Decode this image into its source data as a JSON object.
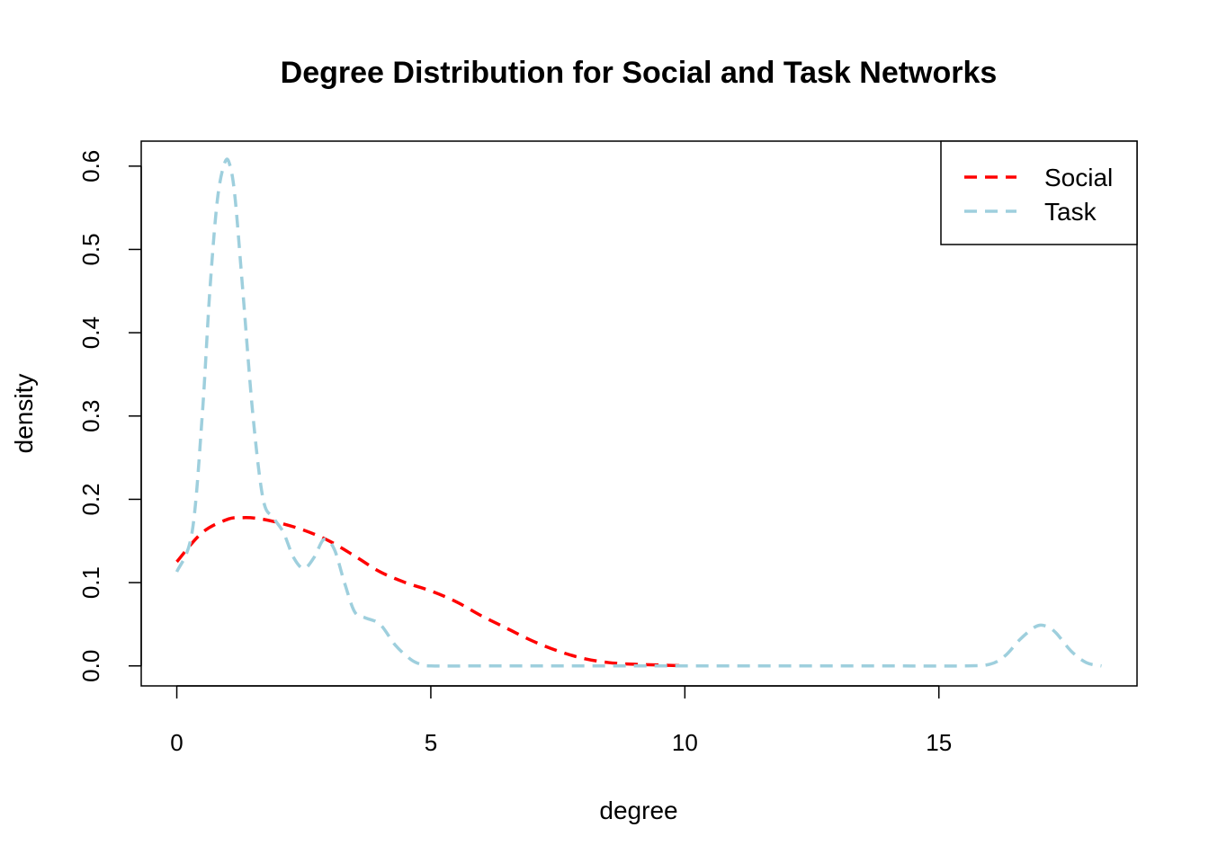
{
  "chart_data": {
    "type": "line",
    "title": "Degree Distribution for Social and Task Networks",
    "xlabel": "degree",
    "ylabel": "density",
    "xlim": [
      -0.7,
      18.9
    ],
    "ylim": [
      -0.024,
      0.63
    ],
    "xticks": [
      0,
      5,
      10,
      15
    ],
    "xtick_labels": [
      "0",
      "5",
      "10",
      "15"
    ],
    "yticks": [
      0.0,
      0.1,
      0.2,
      0.3,
      0.4,
      0.5,
      0.6
    ],
    "ytick_labels": [
      "0.0",
      "0.1",
      "0.2",
      "0.3",
      "0.4",
      "0.5",
      "0.6"
    ],
    "grid": false,
    "legend": {
      "placement": "top-right"
    },
    "series": [
      {
        "name": "Social",
        "color": "#ff0000",
        "dash": "dashed",
        "x": [
          0,
          0.5,
          1.0,
          1.3,
          1.6,
          2.0,
          2.5,
          3.0,
          3.5,
          4.0,
          4.5,
          5.0,
          5.5,
          6.0,
          6.5,
          7.0,
          7.5,
          8.0,
          8.5,
          9.0,
          9.5,
          10.0
        ],
        "y": [
          0.125,
          0.16,
          0.176,
          0.178,
          0.177,
          0.172,
          0.163,
          0.15,
          0.132,
          0.113,
          0.1,
          0.09,
          0.077,
          0.06,
          0.045,
          0.03,
          0.018,
          0.009,
          0.004,
          0.002,
          0.001,
          0.0
        ]
      },
      {
        "name": "Task",
        "color": "#9ecfdd",
        "dash": "dashed",
        "x": [
          0,
          0.3,
          0.5,
          0.65,
          0.8,
          0.95,
          1.05,
          1.15,
          1.3,
          1.5,
          1.7,
          1.9,
          2.1,
          2.3,
          2.5,
          2.7,
          2.9,
          3.1,
          3.3,
          3.5,
          3.7,
          4.0,
          4.3,
          4.6,
          4.8,
          5.0,
          6.0,
          8.0,
          10.0,
          12.0,
          14.0,
          15.5,
          16.0,
          16.3,
          16.6,
          16.9,
          17.1,
          17.3,
          17.6,
          17.9,
          18.2
        ],
        "y": [
          0.113,
          0.16,
          0.3,
          0.45,
          0.56,
          0.605,
          0.6,
          0.56,
          0.45,
          0.3,
          0.2,
          0.178,
          0.16,
          0.13,
          0.117,
          0.13,
          0.152,
          0.14,
          0.1,
          0.065,
          0.058,
          0.05,
          0.025,
          0.008,
          0.002,
          0.0,
          0.0,
          0.0,
          0.0,
          0.0,
          0.0,
          0.0,
          0.002,
          0.012,
          0.032,
          0.047,
          0.048,
          0.04,
          0.018,
          0.004,
          0.0
        ]
      }
    ]
  }
}
